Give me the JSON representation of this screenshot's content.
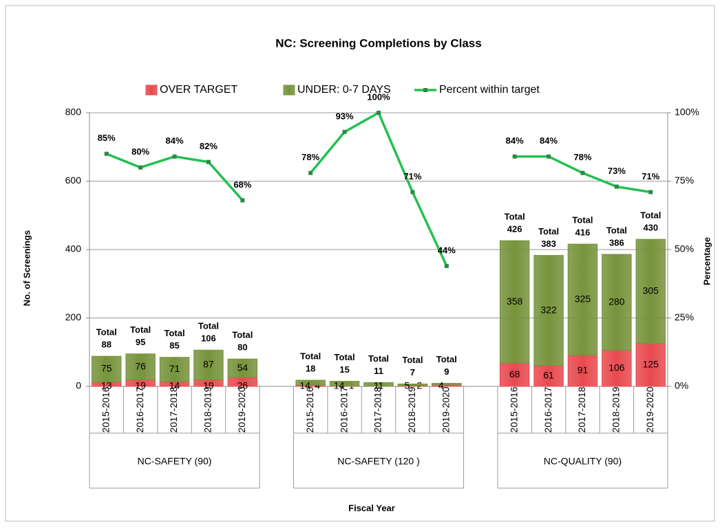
{
  "chart_data": {
    "type": "stacked_bar_line",
    "title": "NC: Screening Completions by Class",
    "x_label": "Fiscal Year",
    "y_label": "No. of Screenings",
    "y2_label": "Percentage",
    "legend": "top",
    "categories": [
      "2015-2016",
      "2016-2017",
      "2017-2018",
      "2018-2019",
      "2019-2020",
      null,
      "2015-2016",
      "2016-2017",
      "2017-2018",
      "2018-2019",
      "2019-2020",
      null,
      "2015-2016",
      "2016-2017",
      "2017-2018",
      "2018-2019",
      "2019-2020"
    ],
    "groups": [
      "NC-SAFETY (90)",
      "NC-SAFETY (120 )",
      "NC-QUALITY (90)"
    ],
    "series": [
      {
        "name": "OVER TARGET",
        "color": "#e84a50",
        "type": "bar",
        "values": [
          13,
          19,
          14,
          19,
          26,
          null,
          4,
          1,
          0,
          2,
          5,
          null,
          68,
          61,
          91,
          106,
          125
        ],
        "value_labels": [
          "13",
          "19",
          "14",
          "19",
          "26",
          null,
          "4",
          "1",
          null,
          "2",
          null,
          null,
          "68",
          "61",
          "91",
          "106",
          "125"
        ]
      },
      {
        "name": "UNDER: 0-7 DAYS",
        "color": "#77933c",
        "type": "bar",
        "values": [
          75,
          76,
          71,
          87,
          54,
          null,
          14,
          14,
          11,
          5,
          4,
          null,
          358,
          322,
          325,
          280,
          305
        ]
      },
      {
        "name": "Percent within target",
        "color": "#22c04f",
        "type": "line",
        "axis": "y2",
        "values": [
          85,
          80,
          84,
          82,
          68,
          null,
          78,
          93,
          100,
          71,
          44,
          null,
          84,
          84,
          78,
          73,
          71
        ],
        "value_labels": [
          "85%",
          "80%",
          "84%",
          "82%",
          "68%",
          null,
          "78%",
          "93%",
          "100%",
          "71%",
          "44%",
          null,
          "84%",
          "84%",
          "78%",
          "73%",
          "71%"
        ]
      }
    ],
    "totals_label": "Total",
    "totals": [
      88,
      95,
      85,
      106,
      80,
      null,
      18,
      15,
      11,
      7,
      9,
      null,
      426,
      383,
      416,
      386,
      430
    ],
    "ylim": [
      0,
      800
    ],
    "yticks": [
      0,
      200,
      400,
      600,
      800
    ],
    "y2lim": [
      0,
      100
    ],
    "y2ticks": [
      {
        "value": 0,
        "label": "0%"
      },
      {
        "value": 25,
        "label": "25%"
      },
      {
        "value": 50,
        "label": "50%"
      },
      {
        "value": 75,
        "label": "75%"
      },
      {
        "value": 100,
        "label": "100%"
      }
    ],
    "grid": true
  }
}
